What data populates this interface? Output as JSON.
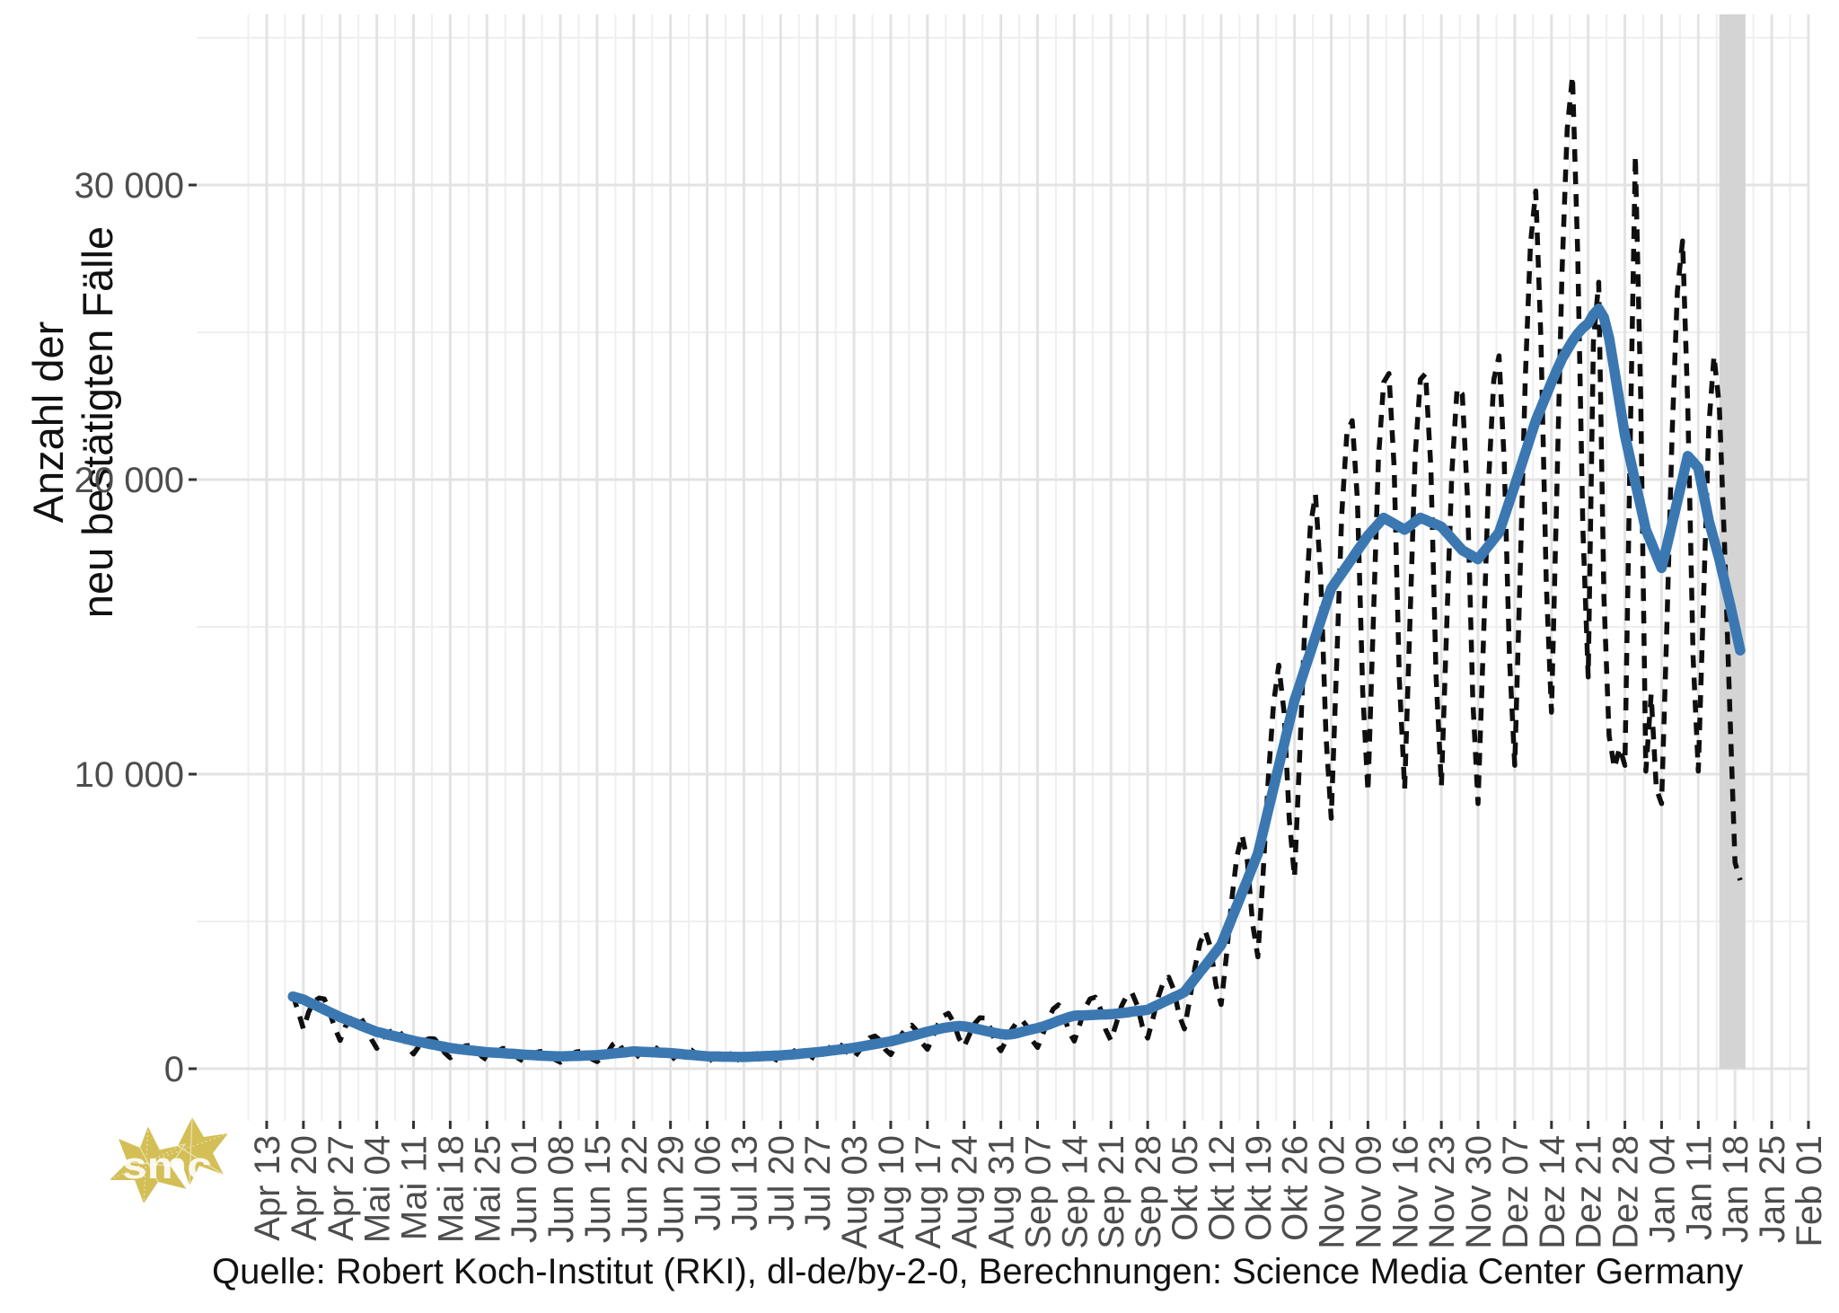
{
  "figure": {
    "y_axis_title_line1": "Anzahl der",
    "y_axis_title_line2": "neu bestätigten Fälle",
    "caption": "Quelle: Robert Koch-Institut (RKI), dl-de/by-2-0, Berechnungen: Science Media Center Germany",
    "logo_text": "smc"
  },
  "chart_data": {
    "type": "line",
    "title": "",
    "ylabel": "Anzahl der neu bestätigten Fälle",
    "xlabel": "",
    "grid": {
      "major_color": "#e3e3e3",
      "minor_color": "#efefef"
    },
    "colors": {
      "daily_line": "#0f0f0f",
      "smoothed_line": "#3b78b2",
      "incomplete_band": "#d4d4d4",
      "tick_text": "#4d4d4d",
      "axis_text": "#111111",
      "logo_gold": "#d3bf55"
    },
    "x": {
      "tick_labels": [
        "Apr 13",
        "Apr 20",
        "Apr 27",
        "Mai 04",
        "Mai 11",
        "Mai 18",
        "Mai 25",
        "Jun 01",
        "Jun 08",
        "Jun 15",
        "Jun 22",
        "Jun 29",
        "Jul 06",
        "Jul 13",
        "Jul 20",
        "Jul 27",
        "Aug 03",
        "Aug 10",
        "Aug 17",
        "Aug 24",
        "Aug 31",
        "Sep 07",
        "Sep 14",
        "Sep 21",
        "Sep 28",
        "Okt 05",
        "Okt 12",
        "Okt 19",
        "Okt 26",
        "Nov 02",
        "Nov 09",
        "Nov 16",
        "Nov 23",
        "Nov 30",
        "Dez 07",
        "Dez 14",
        "Dez 21",
        "Dez 28",
        "Jan 04",
        "Jan 11",
        "Jan 18",
        "Jan 25",
        "Feb 01"
      ],
      "tick_interval_days": 7,
      "series_start_day_offset": 5
    },
    "y": {
      "ticks": [
        {
          "value": 0,
          "label": "0"
        },
        {
          "value": 10000,
          "label": "10 000"
        },
        {
          "value": 20000,
          "label": "20 000"
        },
        {
          "value": 30000,
          "label": "30 000"
        }
      ],
      "minor_step": 5000,
      "range_min": -1770,
      "range_max": 35790
    },
    "annotations": {
      "incomplete_data_band": {
        "from_day_offset": 277,
        "to_day_offset": 282
      }
    },
    "series": [
      {
        "id": "daily_new_cases",
        "style": "dashed",
        "values": [
          2500,
          1950,
          1350,
          1920,
          2290,
          2400,
          2370,
          1920,
          1380,
          960,
          1430,
          1690,
          1770,
          1720,
          1390,
          990,
          690,
          1030,
          1220,
          1290,
          1350,
          1090,
          710,
          500,
          760,
          950,
          1020,
          1010,
          810,
          530,
          370,
          560,
          710,
          780,
          780,
          630,
          420,
          300,
          450,
          600,
          690,
          680,
          560,
          350,
          250,
          390,
          520,
          580,
          590,
          470,
          310,
          220,
          350,
          480,
          570,
          590,
          500,
          330,
          240,
          390,
          550,
          820,
          930,
          610,
          410,
          310,
          480,
          640,
          730,
          740,
          600,
          390,
          280,
          420,
          560,
          620,
          630,
          500,
          310,
          220,
          340,
          460,
          530,
          550,
          450,
          290,
          210,
          330,
          460,
          550,
          570,
          480,
          320,
          230,
          380,
          540,
          640,
          690,
          580,
          390,
          290,
          480,
          670,
          810,
          860,
          730,
          500,
          370,
          610,
          870,
          1050,
          1110,
          960,
          650,
          480,
          800,
          1140,
          1390,
          1480,
          1280,
          870,
          660,
          1070,
          1500,
          1790,
          1880,
          1570,
          1040,
          750,
          1160,
          1530,
          1730,
          1720,
          1380,
          870,
          610,
          950,
          1310,
          1560,
          1660,
          1430,
          960,
          720,
          1170,
          1670,
          2030,
          2170,
          1840,
          1250,
          940,
          1480,
          2030,
          2370,
          2430,
          2020,
          1320,
          960,
          1530,
          2120,
          2480,
          2580,
          2160,
          1430,
          1040,
          1710,
          2430,
          2940,
          3110,
          2670,
          1810,
          1350,
          2320,
          3430,
          4280,
          4670,
          4110,
          2860,
          2180,
          3800,
          5700,
          7190,
          7940,
          7050,
          4940,
          3800,
          6590,
          9840,
          12400,
          13700,
          12100,
          8470,
          6500,
          10700,
          15200,
          18400,
          19500,
          16700,
          11300,
          8500,
          13600,
          18800,
          21600,
          22000,
          19300,
          12800,
          9400,
          15000,
          20700,
          23300,
          23600,
          20400,
          13200,
          9500,
          15100,
          20800,
          23400,
          23600,
          20400,
          13300,
          9600,
          14900,
          20200,
          23100,
          22900,
          19300,
          12500,
          9000,
          14400,
          19900,
          23400,
          24200,
          20600,
          13900,
          10300,
          16700,
          23400,
          28000,
          29800,
          24700,
          16500,
          12100,
          19400,
          27000,
          31900,
          33700,
          27700,
          18300,
          13300,
          24700,
          26700,
          16000,
          11300,
          10200,
          10900,
          10300,
          21100,
          31000,
          22900,
          10100,
          12700,
          9500,
          9000,
          15000,
          21500,
          26400,
          28100,
          22500,
          14000,
          10100,
          16000,
          21800,
          24200,
          22500,
          17800,
          12200,
          7000,
          6400
        ]
      },
      {
        "id": "seven_day_mean",
        "style": "solid",
        "values": [
          2450,
          2400,
          2350,
          2260,
          2180,
          2090,
          2010,
          1920,
          1840,
          1750,
          1680,
          1610,
          1540,
          1460,
          1390,
          1320,
          1250,
          1210,
          1160,
          1120,
          1080,
          1040,
          990,
          950,
          910,
          880,
          840,
          810,
          770,
          740,
          700,
          680,
          660,
          640,
          620,
          600,
          580,
          560,
          550,
          540,
          530,
          515,
          505,
          490,
          480,
          470,
          460,
          445,
          440,
          430,
          425,
          420,
          425,
          430,
          435,
          440,
          450,
          455,
          460,
          480,
          495,
          515,
          535,
          550,
          570,
          590,
          580,
          570,
          565,
          555,
          545,
          540,
          530,
          515,
          500,
          480,
          470,
          455,
          435,
          420,
          415,
          415,
          410,
          410,
          405,
          400,
          400,
          405,
          415,
          420,
          430,
          435,
          445,
          450,
          465,
          480,
          495,
          515,
          530,
          545,
          560,
          580,
          600,
          625,
          645,
          665,
          690,
          710,
          740,
          775,
          805,
          835,
          870,
          900,
          930,
          975,
          1020,
          1070,
          1110,
          1160,
          1210,
          1260,
          1300,
          1340,
          1380,
          1410,
          1430,
          1450,
          1440,
          1410,
          1370,
          1330,
          1290,
          1250,
          1210,
          1180,
          1160,
          1170,
          1200,
          1250,
          1300,
          1340,
          1380,
          1430,
          1490,
          1560,
          1630,
          1690,
          1750,
          1800,
          1810,
          1810,
          1820,
          1830,
          1840,
          1840,
          1850,
          1870,
          1890,
          1910,
          1940,
          1960,
          1980,
          2000,
          2090,
          2170,
          2260,
          2340,
          2430,
          2510,
          2600,
          2830,
          3060,
          3290,
          3510,
          3740,
          3970,
          4200,
          4640,
          5090,
          5530,
          5970,
          6410,
          6860,
          7300,
          8040,
          8790,
          9530,
          10270,
          11010,
          11760,
          12500,
          13040,
          13590,
          14130,
          14670,
          15210,
          15760,
          16300,
          16560,
          16810,
          17070,
          17330,
          17590,
          17840,
          18100,
          18300,
          18500,
          18700,
          18600,
          18500,
          18400,
          18300,
          18430,
          18570,
          18700,
          18630,
          18550,
          18480,
          18400,
          18200,
          18000,
          17800,
          17600,
          17500,
          17400,
          17300,
          17530,
          17750,
          17980,
          18200,
          18730,
          19270,
          19800,
          20350,
          20900,
          21450,
          22000,
          22430,
          22870,
          23300,
          23700,
          24100,
          24400,
          24700,
          24950,
          25150,
          25300,
          25600,
          25800,
          25500,
          24800,
          23700,
          22600,
          21500,
          20700,
          19900,
          19100,
          18300,
          17870,
          17430,
          17000,
          17750,
          18500,
          19270,
          20030,
          20800,
          20600,
          20400,
          19500,
          18600,
          17950,
          17300,
          16550,
          15800,
          15000,
          14200
        ]
      }
    ]
  }
}
